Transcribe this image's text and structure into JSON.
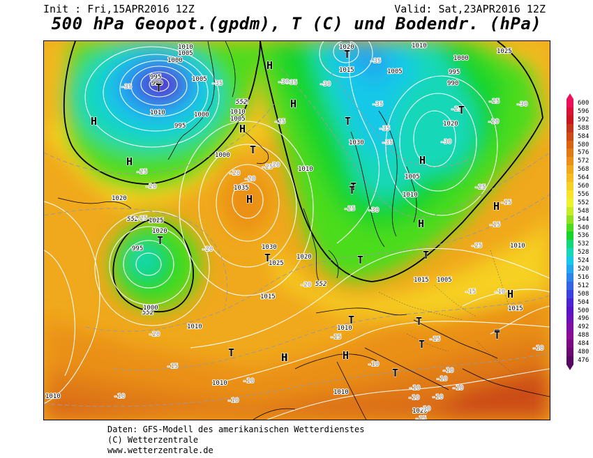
{
  "header": {
    "init": "Init : Fri,15APR2016 12Z",
    "valid": "Valid: Sat,23APR2016 12Z",
    "title": "500 hPa Geopot.(gpdm), T (C) und Bodendr. (hPa)"
  },
  "footer": {
    "line1": "Daten: GFS-Modell des amerikanischen Wetterdienstes",
    "line2": "(C) Wetterzentrale",
    "line3": "www.wetterzentrale.de"
  },
  "legend": {
    "values": [
      "600",
      "596",
      "592",
      "588",
      "584",
      "580",
      "576",
      "572",
      "568",
      "564",
      "560",
      "556",
      "552",
      "548",
      "544",
      "540",
      "536",
      "532",
      "528",
      "524",
      "520",
      "516",
      "512",
      "508",
      "504",
      "500",
      "496",
      "492",
      "488",
      "484",
      "480",
      "476"
    ],
    "colors": [
      "#ee0f5a",
      "#d81234",
      "#c8161e",
      "#c43418",
      "#cc4b14",
      "#d86412",
      "#e07a14",
      "#ea9018",
      "#f0a81c",
      "#f4bc20",
      "#f6d024",
      "#f8e42a",
      "#eef22e",
      "#c6ec26",
      "#92e020",
      "#4cdc1e",
      "#16d42a",
      "#14d67a",
      "#16d8b8",
      "#18c8e8",
      "#22a6ee",
      "#2c84ea",
      "#3462e4",
      "#3c40dc",
      "#4a24d2",
      "#5a14c8",
      "#6c10b8",
      "#7c0ea6",
      "#8a0c94",
      "#7a0a82",
      "#680870",
      "#560660"
    ]
  },
  "map": {
    "pressure_labels": [
      "1010",
      "1005",
      "1000",
      "995",
      "990",
      "1010",
      "1005",
      "1000",
      "995",
      "1020",
      "1015",
      "1010",
      "1005",
      "1000",
      "995",
      "990",
      "1020",
      "1025",
      "1030",
      "1010",
      "1005",
      "1000",
      "1035",
      "1030",
      "1025",
      "1020",
      "1015",
      "1010",
      "1010",
      "1005",
      "1010",
      "1015",
      "1010",
      "1010",
      "1020",
      "1015",
      "1005",
      "1010",
      "1010",
      "1020",
      "1025",
      "1020",
      "995",
      "1000",
      "1010"
    ],
    "temp_labels": [
      "-35",
      "-35",
      "-30",
      "-35",
      "-25",
      "-35",
      "-20",
      "-25",
      "-35",
      "-30",
      "-25",
      "-20",
      "-35",
      "-35",
      "-30",
      "-25",
      "-30",
      "-25",
      "-30",
      "-20",
      "-20",
      "-25",
      "-20",
      "-25",
      "-20",
      "-20",
      "-15",
      "-15",
      "-20",
      "-15",
      "-25",
      "-15",
      "-15",
      "-10",
      "-10",
      "-10",
      "-10",
      "-10",
      "-10",
      "-10",
      "-10",
      "-10",
      "-10",
      "-10",
      "-10",
      "-15",
      "-15",
      "-10",
      "-25"
    ],
    "geopot_labels": [
      "552",
      "552",
      "552",
      "552",
      "552"
    ],
    "centers": [
      "T",
      "H",
      "H",
      "T",
      "H",
      "H",
      "H",
      "T",
      "T",
      "T",
      "T",
      "H",
      "T",
      "T",
      "H",
      "T",
      "H",
      "T",
      "H",
      "T",
      "T",
      "T",
      "T",
      "H",
      "H",
      "T",
      "T",
      "T",
      "H",
      "T",
      "H"
    ]
  }
}
